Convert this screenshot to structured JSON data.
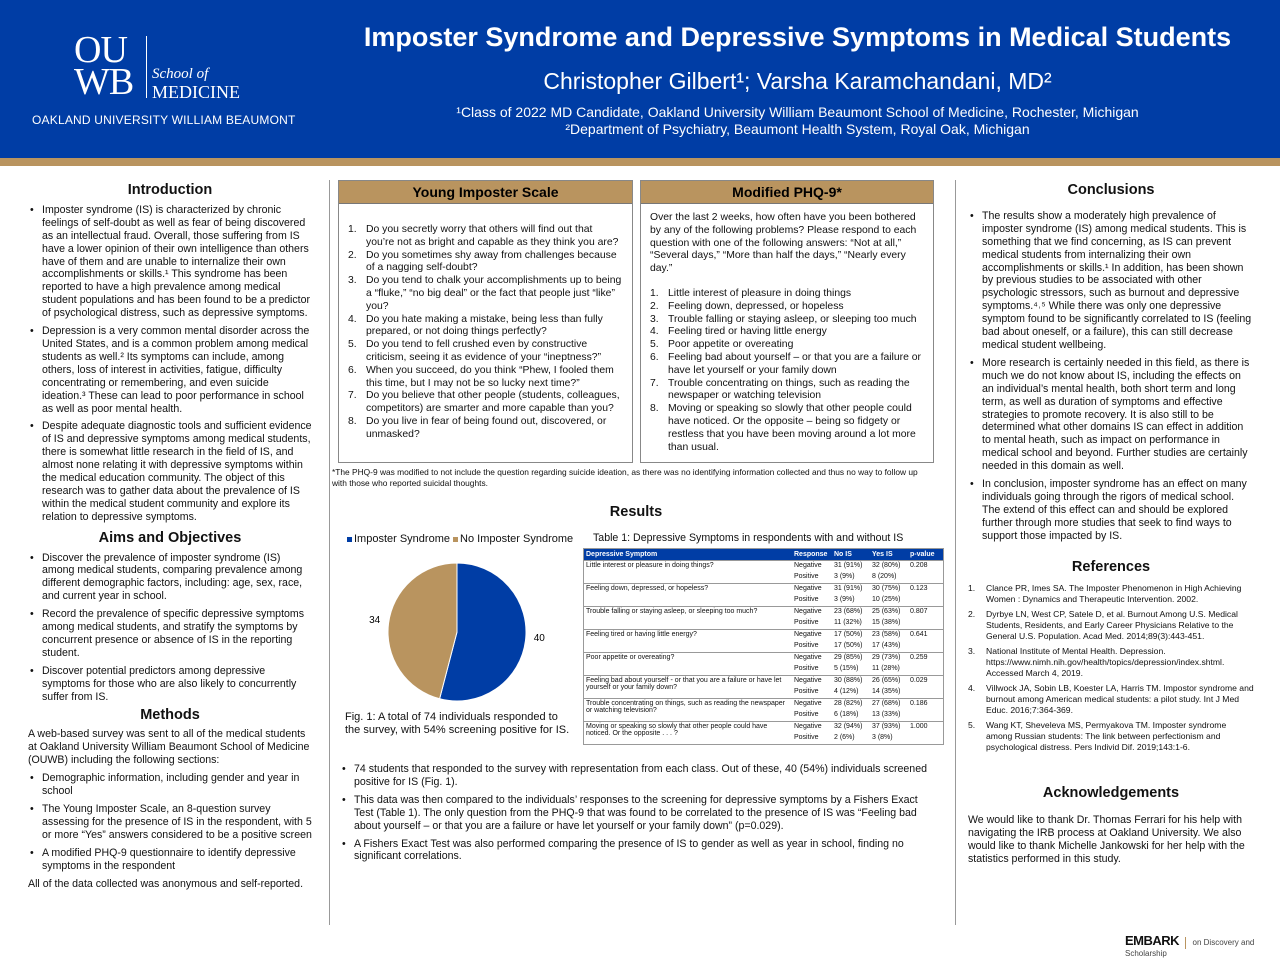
{
  "header": {
    "logo_text": "OU WB",
    "logo_school": "School of",
    "logo_medicine": "MEDICINE",
    "university": "OAKLAND UNIVERSITY WILLIAM BEAUMONT",
    "title": "Imposter Syndrome and Depressive Symptoms in Medical Students",
    "authors": "Christopher Gilbert¹; Varsha Karamchandani, MD²",
    "affiliation1": "¹Class of 2022 MD Candidate, Oakland University William Beaumont School of Medicine, Rochester, Michigan",
    "affiliation2": "²Department of Psychiatry, Beaumont Health System, Royal Oak, Michigan",
    "colors": {
      "blue": "#003DA5",
      "gold": "#B9945F"
    }
  },
  "introduction": {
    "heading": "Introduction",
    "bullets": [
      "Imposter syndrome (IS) is characterized by chronic feelings of self-doubt as well as fear of being discovered as an intellectual fraud. Overall, those suffering from IS have a lower opinion of their own intelligence than others have of them and are unable to internalize their own accomplishments or skills.¹ This syndrome has been reported to have a high prevalence among medical student populations and has been found to be a predictor of psychological distress, such as depressive symptoms.",
      "Depression is a very common mental disorder across the United States, and is a common problem among medical students as well.² Its symptoms can include, among others, loss of interest in activities, fatigue, difficulty concentrating or remembering, and even suicide ideation.³ These can lead to poor performance in school as well as poor mental health.",
      "Despite adequate diagnostic tools and sufficient evidence of IS and depressive symptoms among medical students, there is somewhat little research in the field of IS, and almost none relating it with depressive symptoms within the medical education community. The object of this research was to gather data about the prevalence of IS within the medical student community and explore its relation to depressive symptoms."
    ]
  },
  "aims": {
    "heading": "Aims and Objectives",
    "bullets": [
      "Discover the prevalence of imposter syndrome (IS) among medical students, comparing prevalence among different demographic factors, including: age, sex, race, and current year in school.",
      "Record the prevalence of specific depressive symptoms among medical students, and stratify the symptoms by concurrent presence or absence of IS in the reporting student.",
      "Discover potential predictors among depressive symptoms for those who are also likely to concurrently suffer from IS."
    ]
  },
  "methods": {
    "heading": "Methods",
    "intro": "A web-based survey was sent to all of the medical students at Oakland University William Beaumont School of Medicine (OUWB) including the following sections:",
    "bullets": [
      "Demographic information, including gender and year in school",
      "The Young Imposter Scale, an 8-question survey assessing for the presence of IS in the respondent, with 5 or more “Yes” answers considered to be a positive screen",
      "A modified PHQ-9 questionnaire to identify depressive symptoms in the respondent"
    ],
    "closing": "All of the data collected was anonymous and self-reported."
  },
  "young_scale": {
    "heading": "Young Imposter Scale",
    "items": [
      "Do you secretly worry that others will find out that you’re not as bright and capable as they think you are?",
      "Do you sometimes shy away from challenges because of a nagging self-doubt?",
      "Do you tend to chalk your accomplishments up to being a “fluke,” “no big deal” or the fact that people just “like” you?",
      "Do you hate making a mistake, being less than fully prepared, or not doing things perfectly?",
      "Do you tend to fell crushed even by constructive criticism, seeing it as evidence of your “ineptness?”",
      "When you succeed, do you think “Phew, I fooled them this time, but I may not be so lucky next time?”",
      "Do you believe that other people (students, colleagues, competitors) are smarter and more capable than you?",
      "Do you live in fear of being found out, discovered, or unmasked?"
    ]
  },
  "phq": {
    "heading": "Modified PHQ-9*",
    "intro": "Over the last 2 weeks, how often have you been bothered by any of the following problems? Please respond to each question with one of the following answers: “Not at all,” “Several days,” “More than half the days,” “Nearly every day.”",
    "items": [
      "Little interest of pleasure in doing things",
      "Feeling down, depressed, or hopeless",
      "Trouble falling or staying asleep, or sleeping too much",
      "Feeling tired or having little energy",
      "Poor appetite or overeating",
      "Feeling bad about yourself – or that you are a failure or have let yourself or your family down",
      "Trouble concentrating on things, such as reading the newspaper or watching television",
      "Moving or speaking so slowly that other people could have noticed. Or the opposite – being so fidgety or restless that you have been moving around a lot more than usual."
    ],
    "footnote": "*The PHQ-9 was modified to not include the question regarding suicide ideation, as there was no identifying information collected and thus no way to follow up with those who reported suicidal thoughts."
  },
  "results": {
    "heading": "Results",
    "figure_caption": "Fig. 1: A total of 74 individuals responded to the survey, with 54% screening positive for IS.",
    "table_title": "Table 1: Depressive Symptoms in respondents with and without IS",
    "bullets": [
      "74 students that responded to the survey with representation from each class. Out of these, 40 (54%) individuals screened positive for IS (Fig. 1).",
      "This data was then compared to the individuals’ responses to the screening for depressive symptoms by a Fishers Exact Test (Table 1). The only question from the PHQ-9 that was found to be correlated to the presence of IS was “Feeling bad about yourself – or that you are a failure or have let yourself or your family down” (p=0.029).",
      "A Fishers Exact Test was also performed comparing the presence of IS to gender as well as year in school, finding no significant correlations."
    ]
  },
  "chart_data": {
    "type": "pie",
    "categories": [
      "Imposter Syndrome",
      "No Imposter Syndrome"
    ],
    "values": [
      40,
      34
    ],
    "colors": [
      "#003DA5",
      "#B9945F"
    ],
    "legend": "top",
    "data_labels": [
      "40",
      "34"
    ]
  },
  "table": {
    "columns": [
      "Depressive Symptom",
      "Response",
      "No IS",
      "Yes IS",
      "p-value"
    ],
    "rows": [
      {
        "symptom": "Little interest or pleasure in doing things?",
        "neg": [
          "31 (91%)",
          "32 (80%)"
        ],
        "pos": [
          "3 (9%)",
          "8 (20%)"
        ],
        "p": "0.208"
      },
      {
        "symptom": "Feeling down, depressed, or hopeless?",
        "neg": [
          "31 (91%)",
          "30 (75%)"
        ],
        "pos": [
          "3 (9%)",
          "10 (25%)"
        ],
        "p": "0.123"
      },
      {
        "symptom": "Trouble falling or staying asleep, or sleeping too much?",
        "neg": [
          "23 (68%)",
          "25 (63%)"
        ],
        "pos": [
          "11 (32%)",
          "15 (38%)"
        ],
        "p": "0.807"
      },
      {
        "symptom": "Feeling tired or having little energy?",
        "neg": [
          "17 (50%)",
          "23 (58%)"
        ],
        "pos": [
          "17 (50%)",
          "17 (43%)"
        ],
        "p": "0.641"
      },
      {
        "symptom": "Poor appetite or overeating?",
        "neg": [
          "29 (85%)",
          "29 (73%)"
        ],
        "pos": [
          "5 (15%)",
          "11 (28%)"
        ],
        "p": "0.259"
      },
      {
        "symptom": "Feeling bad about yourself - or that you are a failure or have let yourself or your family down?",
        "neg": [
          "30 (88%)",
          "26 (65%)"
        ],
        "pos": [
          "4 (12%)",
          "14 (35%)"
        ],
        "p": "0.029"
      },
      {
        "symptom": "Trouble concentrating on things, such as reading the newspaper or watching television?",
        "neg": [
          "28 (82%)",
          "27 (68%)"
        ],
        "pos": [
          "6 (18%)",
          "13 (33%)"
        ],
        "p": "0.186"
      },
      {
        "symptom": "Moving or speaking so slowly that other people could have noticed. Or the opposite . . . ?",
        "neg": [
          "32 (94%)",
          "37 (93%)"
        ],
        "pos": [
          "2 (6%)",
          "3 (8%)"
        ],
        "p": "1.000"
      }
    ],
    "negative": "Negative",
    "positive": "Positive"
  },
  "conclusions": {
    "heading": "Conclusions",
    "bullets": [
      "The results show a moderately high prevalence of imposter syndrome (IS) among medical students. This is something that we find concerning, as IS can prevent medical students from internalizing their own accomplishments or skills.¹ In addition, has been shown by previous studies to be associated with other psychologic stressors, such as burnout and depressive symptoms.⁴˒⁵ While there was only one depressive symptom found to be significantly correlated to IS (feeling bad about oneself, or a failure), this can still decrease medical student wellbeing.",
      "More research is certainly needed in this field, as there is much we do not know about IS, including the effects on an individual’s mental health, both short term and long term, as well as duration of symptoms and effective strategies to promote recovery. It is also still to be determined what other domains IS can effect in addition to mental heath, such as impact on performance in medical school and beyond. Further studies are certainly needed in this domain as well.",
      "In conclusion, imposter syndrome has an effect on many individuals going through the rigors of medical school. The extend of this effect can and should be explored further through more studies that seek to find ways to support those impacted by IS."
    ]
  },
  "references": {
    "heading": "References",
    "items": [
      "Clance PR, Imes SA. The Imposter Phenomenon in High Achieving Women : Dynamics and Therapeutic Intervention. 2002.",
      "Dyrbye LN, West CP, Satele D, et al. Burnout Among U.S. Medical Students, Residents, and Early Career Physicians Relative to the General U.S. Population. Acad Med. 2014;89(3):443-451.",
      "National Institute of Mental Health. Depression. https://www.nimh.nih.gov/health/topics/depression/index.shtml. Accessed March 4, 2019.",
      "Villwock JA, Sobin LB, Koester LA, Harris TM. Impostor syndrome and burnout among American medical students: a pilot study. Int J Med Educ. 2016;7:364-369.",
      "Wang KT, Sheveleva MS, Permyakova TM. Imposter syndrome among Russian students: The link between perfectionism and psychological distress. Pers Individ Dif. 2019;143:1-6."
    ]
  },
  "acknowledgements": {
    "heading": "Acknowledgements",
    "text": "We would like to thank Dr. Thomas Ferrari for his help with navigating the IRB process at Oakland University. We also would like to thank Michelle Jankowski for her help with the statistics performed in this study."
  },
  "footer": {
    "brand": "EMBARK",
    "tagline": "on Discovery and Scholarship"
  }
}
